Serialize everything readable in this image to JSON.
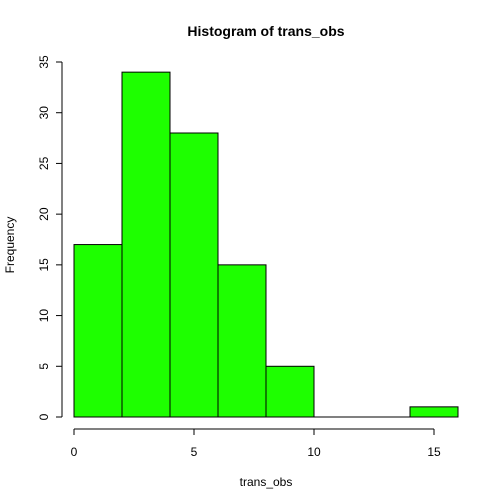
{
  "chart_data": {
    "type": "bar",
    "title": "Histogram of trans_obs",
    "xlabel": "trans_obs",
    "ylabel": "Frequency",
    "bins": [
      {
        "start": 0,
        "end": 2,
        "count": 17
      },
      {
        "start": 2,
        "end": 4,
        "count": 34
      },
      {
        "start": 4,
        "end": 6,
        "count": 28
      },
      {
        "start": 6,
        "end": 8,
        "count": 15
      },
      {
        "start": 8,
        "end": 10,
        "count": 5
      },
      {
        "start": 10,
        "end": 12,
        "count": 0
      },
      {
        "start": 12,
        "end": 14,
        "count": 0
      },
      {
        "start": 14,
        "end": 16,
        "count": 1
      }
    ],
    "xticks": [
      0,
      5,
      10,
      15
    ],
    "yticks": [
      0,
      5,
      10,
      15,
      20,
      25,
      30,
      35
    ],
    "xlim": [
      0,
      16
    ],
    "ylim": [
      0,
      35
    ],
    "bar_color": "#1eff00",
    "grid": false
  }
}
